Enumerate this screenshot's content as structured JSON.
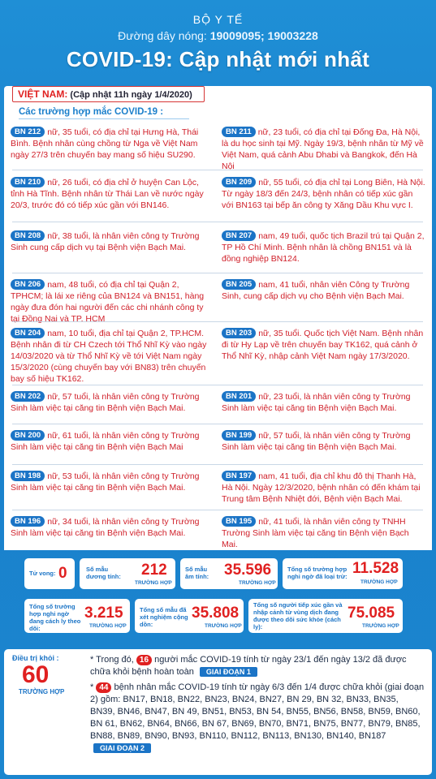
{
  "header": {
    "ministry": "BỘ Y TẾ",
    "hotline_label": "Đường dây nóng:",
    "hotline_numbers": "19009095; 19003228",
    "title": "COVID-19: Cập nhật mới nhất"
  },
  "panel": {
    "country": "VIỆT NAM:",
    "update": "(Cập nhật 11h ngày 1/4/2020)",
    "heading": "Các trường hợp mắc COVID-19 :"
  },
  "cases": [
    {
      "id": "BN 212",
      "text": "nữ, 35 tuổi, có địa chỉ tại Hưng Hà, Thái Bình. Bệnh nhân cùng chồng từ Nga về Việt Nam ngày 27/3 trên chuyến bay mang số hiệu SU290."
    },
    {
      "id": "BN 211",
      "text": "nữ, 23 tuổi, có địa chỉ tại Đống Đa, Hà Nội, là du học sinh tại Mỹ. Ngày 19/3, bệnh nhân từ Mỹ về Việt Nam, quá cảnh Abu Dhabi và Bangkok, đến Hà Nội"
    },
    {
      "id": "BN 210",
      "text": "nữ, 26 tuổi, có địa chỉ ở huyện Can Lộc, tỉnh Hà Tĩnh. Bệnh nhân từ Thái Lan về nước ngày 20/3, trước đó có tiếp xúc gần với BN146."
    },
    {
      "id": "BN 209",
      "text": "nữ, 55 tuổi, có địa chỉ tại Long Biên, Hà Nội. Từ ngày 18/3 đến 24/3, bệnh nhân có tiếp xúc gần với BN163 tại bếp ăn công ty Xăng Dầu Khu vực I."
    },
    {
      "id": "BN 208",
      "text": "nữ, 38 tuổi, là nhân viên công ty Trường Sinh cung cấp dịch vụ tại Bệnh viện Bạch Mai."
    },
    {
      "id": "BN 207",
      "text": "nam, 49 tuổi, quốc tịch Brazil trú tại Quận 2, TP Hồ Chí Minh. Bệnh nhân là chồng BN151 và là đồng nghiệp BN124."
    },
    {
      "id": "BN 206",
      "text": "nam, 48 tuổi, có địa chỉ tại Quận 2, TPHCM; là lái xe riêng của BN124 và BN151, hàng ngày đưa đón hai người đến các chi nhánh công ty tại Đồng Nai và TP. HCM"
    },
    {
      "id": "BN 205",
      "text": "nam, 41 tuổi, nhân viên Công ty Trường Sinh, cung cấp dịch vụ cho Bệnh viện Bạch Mai."
    },
    {
      "id": "BN 204",
      "text": "nam, 10 tuổi, địa chỉ tại Quận 2, TP.HCM. Bệnh nhân đi từ CH Czech tới Thổ Nhĩ Kỳ vào ngày 14/03/2020 và từ Thổ Nhĩ Kỳ về tới Việt Nam ngày 15/3/2020 (cùng chuyến bay với BN83) trên chuyến bay số hiệu TK162."
    },
    {
      "id": "BN 203",
      "text": "nữ, 35 tuổi. Quốc tịch Việt Nam. Bệnh nhân đi từ Hy Lạp về trên chuyến bay TK162, quá cảnh ở Thổ Nhĩ Kỳ, nhập cảnh Việt Nam ngày 17/3/2020."
    },
    {
      "id": "BN 202",
      "text": "nữ, 57 tuổi, là nhân viên công ty Trường Sinh làm việc tại căng tin Bệnh viện Bạch Mai."
    },
    {
      "id": "BN 201",
      "text": "nữ, 23 tuổi, là nhân viên công ty Trường Sinh làm việc tại căng tin Bệnh viện Bạch Mai."
    },
    {
      "id": "BN 200",
      "text": "nữ, 61 tuổi, là nhân viên công ty Trường Sinh làm việc tại căng tin Bệnh viện Bạch Mai"
    },
    {
      "id": "BN 199",
      "text": "nữ, 57 tuổi, là nhân viên công ty Trường Sinh làm việc tại căng tin Bệnh viện Bạch Mai."
    },
    {
      "id": "BN 198",
      "text": "nữ, 53 tuổi, là nhân viên công ty Trường Sinh làm việc tại căng tin Bệnh viện Bạch Mai."
    },
    {
      "id": "BN 197",
      "text": "nam, 41 tuổi, địa chỉ khu đô thị Thanh Hà, Hà Nội. Ngày 12/3/2020, bệnh nhân có đến khám tại Trung tâm Bệnh Nhiệt đới, Bệnh viện Bạch Mai."
    },
    {
      "id": "BN 196",
      "text": "nữ, 34 tuổi, là nhân viên công ty Trường Sinh làm việc tại căng tin Bệnh viện Bạch Mai."
    },
    {
      "id": "BN 195",
      "text": "nữ, 41 tuổi, là nhân viên công ty TNHH Trường Sinh làm việc tại căng tin Bệnh viện Bạch Mai."
    }
  ],
  "stats": {
    "deaths_label": "Tử vong:",
    "deaths": "0",
    "positive_label": "Số mẫu dương tính:",
    "positive": "212",
    "negative_label": "Số mẫu âm tính:",
    "negative": "35.596",
    "ruled_out_label": "Tổng số trường hợp nghi ngờ đã loại trừ:",
    "ruled_out": "11.528",
    "home_isolation_label": "Tổng số trường hợp nghi ngờ đang cách ly theo dõi:",
    "home_isolation": "3.215",
    "tested_label": "Tổng số mẫu đã xét nghiệm cộng dồn:",
    "tested": "35.808",
    "monitored_label": "Tổng số người tiếp xúc gần và nhập cảnh từ vùng dịch đang được theo dõi sức khỏe (cách ly):",
    "monitored": "75.085",
    "unit": "TRƯỜNG HỢP"
  },
  "recovery": {
    "label": "Điều trị khỏi :",
    "total": "60",
    "unit": "TRƯỜNG HỢP",
    "phase1_prefix": "* Trong đó,",
    "phase1_count": "16",
    "phase1_text": "người mắc COVID-19 tính từ ngày 23/1 đến ngày 13/2 đã được chữa khỏi bệnh hoàn toàn",
    "phase1_tag": "GIAI ĐOẠN 1",
    "phase2_prefix": "*",
    "phase2_count": "44",
    "phase2_text": "bệnh nhân mắc COVID-19 tính từ ngày 6/3 đến 1/4 được chữa khỏi (giai đoạn 2) gồm:",
    "phase2_list": "BN17, BN18, BN22, BN23, BN24, BN27, BN 29, BN 32, BN33, BN35, BN39, BN46, BN47, BN 49, BN51, BN53, BN 54, BN55, BN56, BN58, BN59, BN60, BN 61, BN62, BN64, BN66, BN 67, BN69, BN70, BN71, BN75, BN77, BN79, BN85, BN88, BN89, BN90, BN93, BN110, BN112, BN113, BN130, BN140, BN187",
    "phase2_tag": "GIAI ĐOẠN 2"
  }
}
